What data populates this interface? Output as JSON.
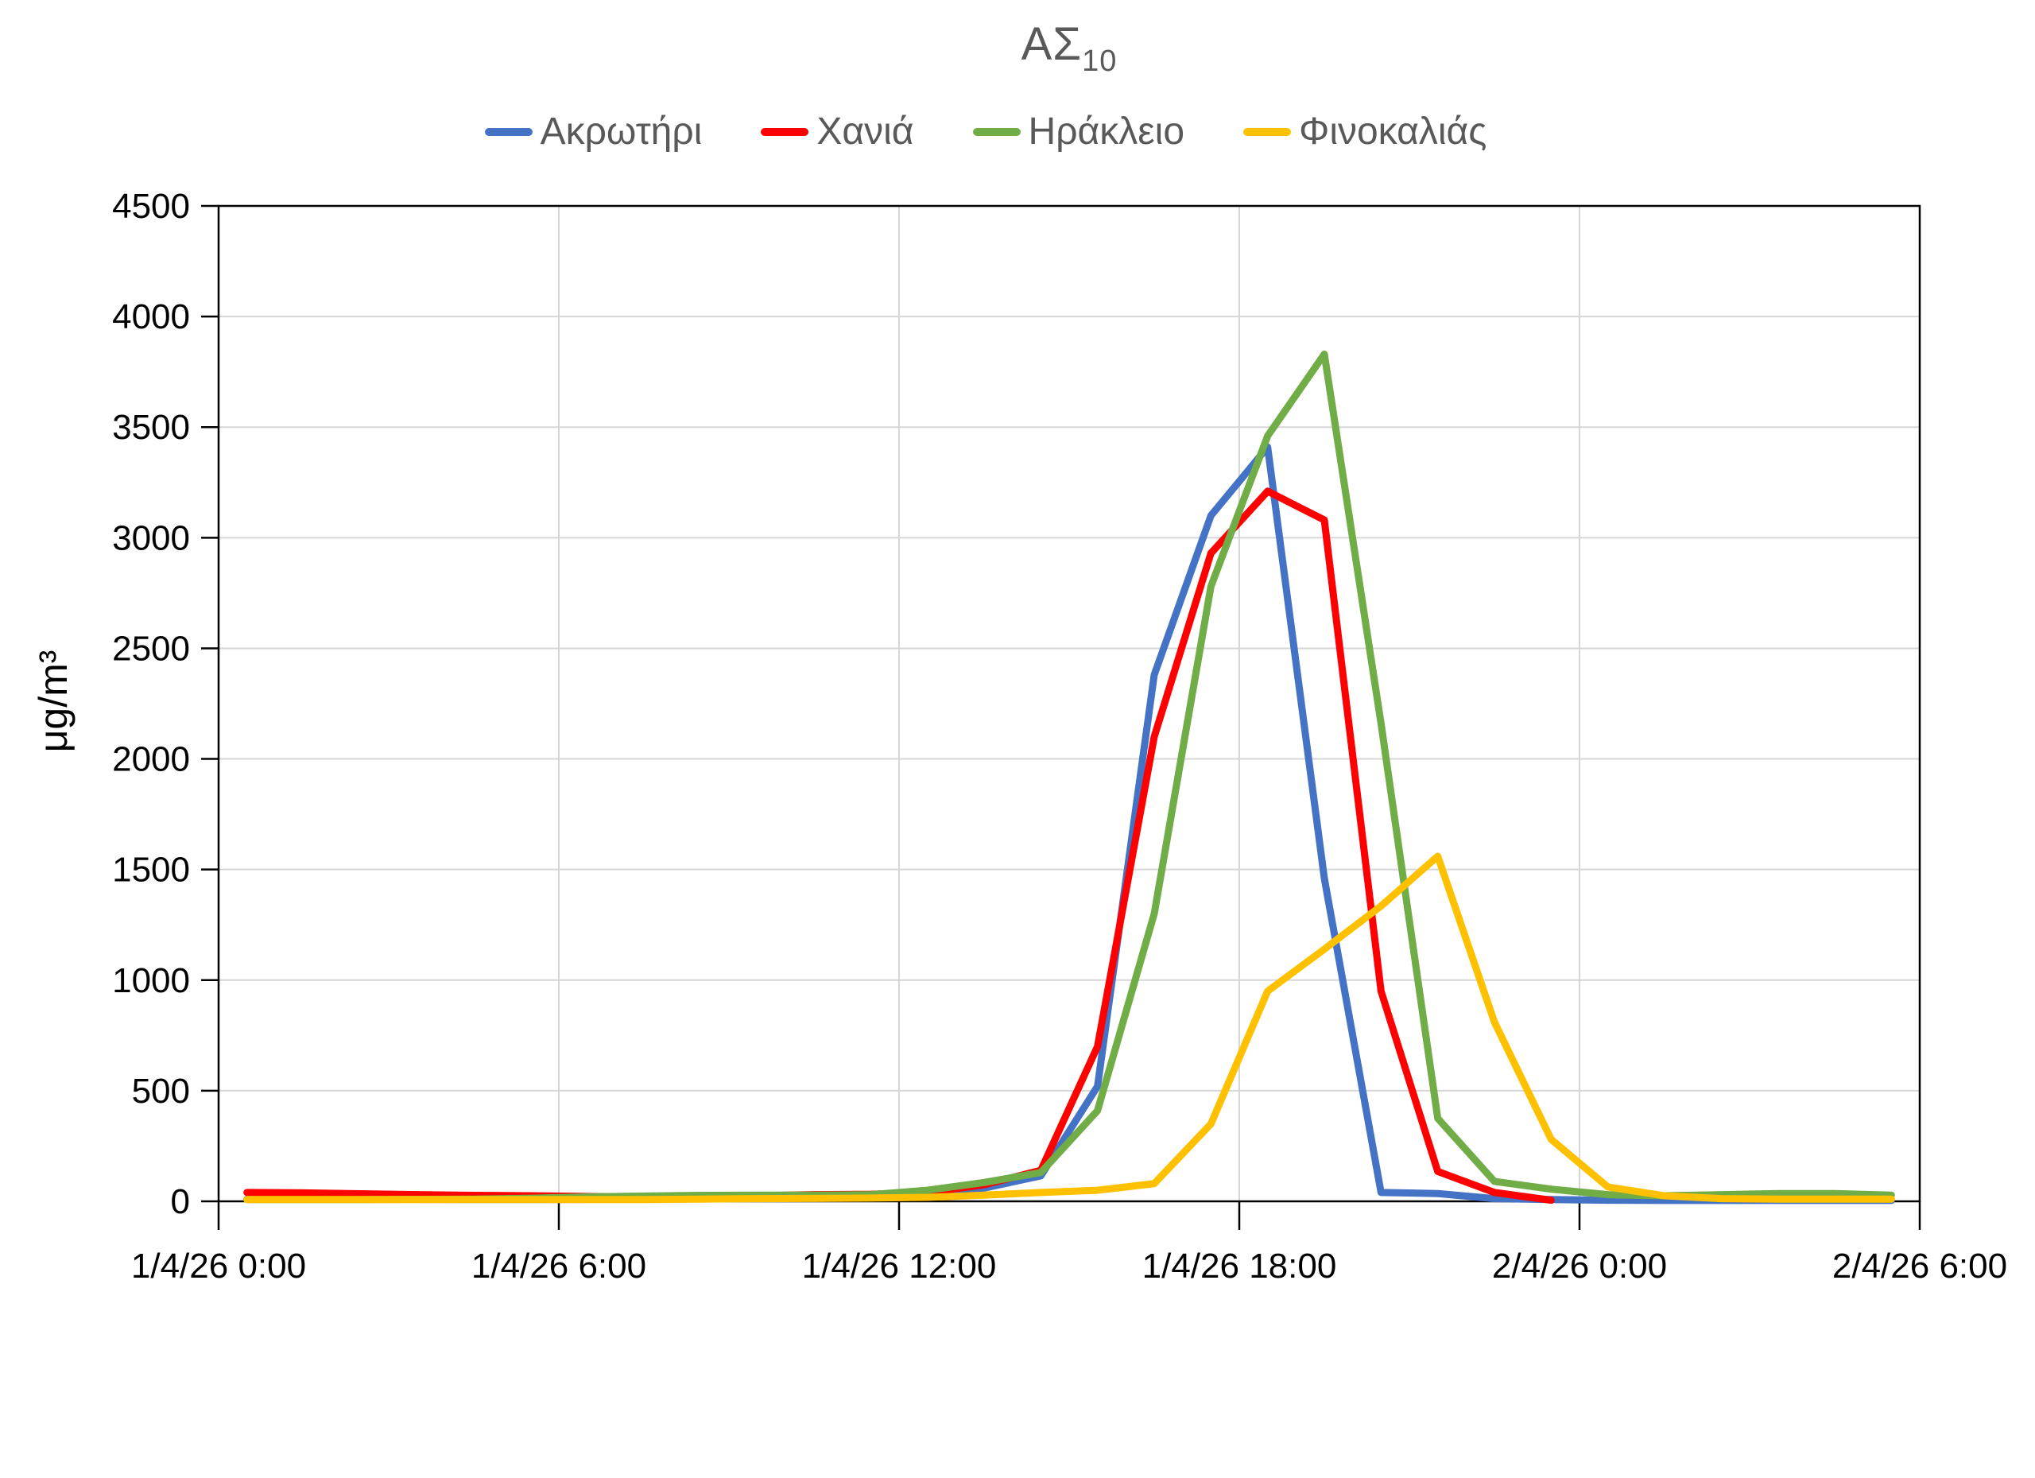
{
  "title": {
    "main": "ΑΣ",
    "sub": "10"
  },
  "y_axis_title": "μg/m³",
  "colors": {
    "background": "#FFFFFF",
    "title_text": "#595959",
    "legend_text": "#595959",
    "tick_text": "#000000",
    "axis_line": "#000000",
    "gridline": "#D6D6D6"
  },
  "chart_data": {
    "type": "line",
    "title": "ΑΣ10",
    "ylabel": "μg/m³",
    "ylim": [
      0,
      4500
    ],
    "ytick_step": 500,
    "y_tick_labels": [
      "0",
      "500",
      "1000",
      "1500",
      "2000",
      "2500",
      "3000",
      "3500",
      "4000",
      "4500"
    ],
    "grid": true,
    "legend_position": "top",
    "sampling": "hourly",
    "x_axis": {
      "start": "1/4/26 0:00",
      "end": "2/4/26 6:00",
      "hours_span": 30,
      "tick_interval_hours": 6,
      "tick_labels": [
        "1/4/26 0:00",
        "1/4/26 6:00",
        "1/4/26 12:00",
        "1/4/26 18:00",
        "2/4/26 0:00",
        "2/4/26 6:00"
      ]
    },
    "series": [
      {
        "name": "Ακρωτήρι",
        "slug": "akrotiri",
        "color": "#4472C4",
        "start_hour": 0,
        "values": [
          10,
          10,
          9,
          9,
          8,
          8,
          9,
          10,
          12,
          15,
          15,
          18,
          30,
          60,
          115,
          520,
          2380,
          3100,
          3410,
          1460,
          40,
          35,
          12,
          8,
          5,
          4,
          4,
          4,
          4,
          4
        ]
      },
      {
        "name": "Χανιά",
        "slug": "chania",
        "color": "#FF0000",
        "start_hour": 0,
        "values": [
          40,
          38,
          34,
          30,
          27,
          25,
          22,
          20,
          20,
          25,
          30,
          32,
          40,
          75,
          140,
          700,
          2100,
          2930,
          3210,
          3080,
          950,
          135,
          40,
          5
        ]
      },
      {
        "name": "Ηράκλειο",
        "slug": "irakleio",
        "color": "#70AD47",
        "start_hour": 0,
        "values": [
          8,
          8,
          8,
          9,
          10,
          14,
          20,
          24,
          27,
          28,
          28,
          30,
          50,
          85,
          130,
          410,
          1300,
          2780,
          3460,
          3830,
          2160,
          375,
          90,
          55,
          30,
          25,
          30,
          35,
          35,
          28
        ]
      },
      {
        "name": "Φινοκαλιάς",
        "slug": "finokalias",
        "color": "#FFC000",
        "start_hour": 0,
        "values": [
          8,
          8,
          8,
          8,
          8,
          8,
          8,
          8,
          10,
          12,
          13,
          15,
          18,
          28,
          40,
          50,
          80,
          350,
          950,
          1140,
          1335,
          1560,
          810,
          280,
          65,
          25,
          12,
          10,
          10,
          10
        ]
      }
    ]
  }
}
